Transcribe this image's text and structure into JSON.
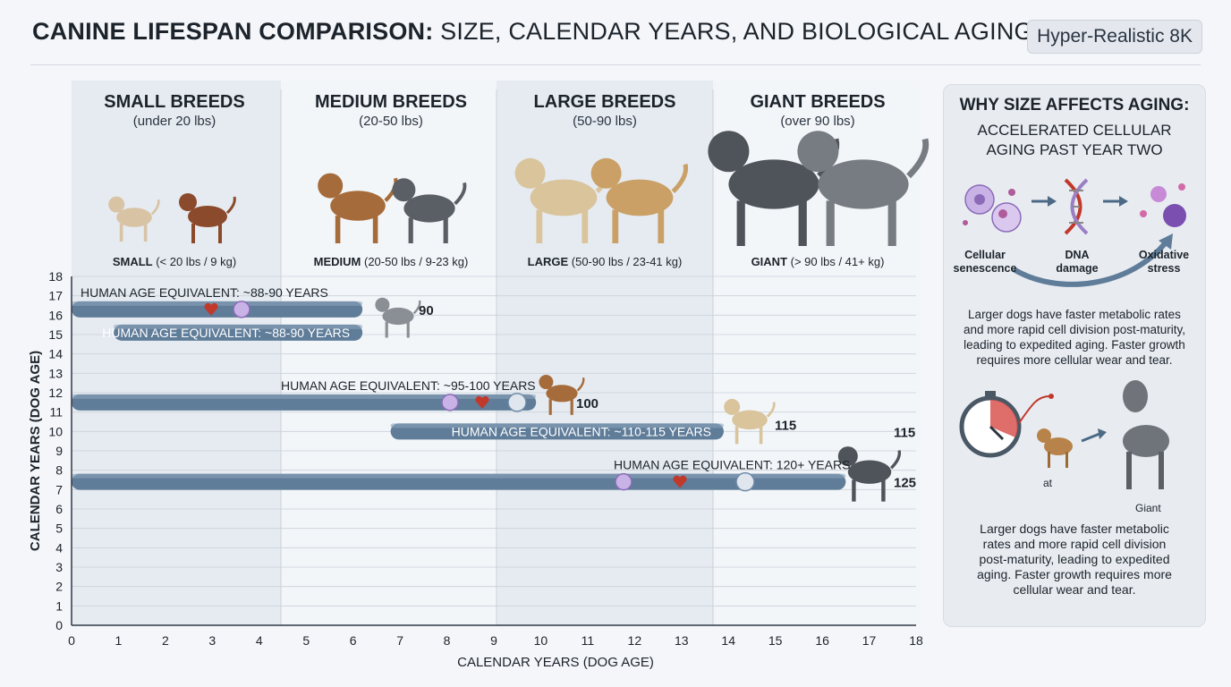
{
  "header": {
    "title_bold": "CANINE LIFESPAN COMPARISON:",
    "title_rest": " SIZE, CALENDAR YEARS, AND BIOLOGICAL AGING DIVERGENCE",
    "badge": "Hyper-Realistic 8K"
  },
  "breeds": [
    {
      "name": "SMALL BREEDS",
      "range": "(under 20 lbs)",
      "caption_bold": "SMALL",
      "caption_rest": " (< 20 lbs / 9 kg)"
    },
    {
      "name": "MEDIUM BREEDS",
      "range": "(20-50 lbs)",
      "caption_bold": "MEDIUM",
      "caption_rest": " (20-50 lbs / 9-23 kg)"
    },
    {
      "name": "LARGE BREEDS",
      "range": "(50-90 lbs)",
      "caption_bold": "LARGE",
      "caption_rest": " (50-90 lbs / 23-41 kg)"
    },
    {
      "name": "GIANT BREEDS",
      "range": "(over 90 lbs)",
      "caption_bold": "GIANT",
      "caption_rest": " (> 90 lbs / 41+ kg)"
    }
  ],
  "chart_data": {
    "type": "bar",
    "orientation": "horizontal",
    "xlabel": "CALENDAR YEARS (DOG AGE)",
    "ylabel": "CALENDAR YEARS (DOG AGE)",
    "xlim": [
      0,
      18
    ],
    "ylim": [
      0,
      18
    ],
    "xticks": [
      0,
      1,
      2,
      3,
      4,
      5,
      6,
      7,
      8,
      9,
      10,
      11,
      12,
      13,
      14,
      15,
      16,
      17,
      18
    ],
    "yticks": [
      0,
      1,
      2,
      3,
      4,
      5,
      6,
      7,
      8,
      9,
      10,
      11,
      12,
      13,
      14,
      15,
      16,
      17,
      18
    ],
    "grid": true,
    "bars": [
      {
        "label": "HUMAN AGE EQUIVALENT:  ~88-90 YEARS",
        "y": 16.3,
        "x_start": 0,
        "x_end": 6.2,
        "value_label": "90",
        "label_position": "above"
      },
      {
        "label": "HUMAN AGE EQUIVALENT: ~88-90 YEARS",
        "y": 15.1,
        "x_start": 0.9,
        "x_end": 6.2,
        "value_label": "",
        "label_position": "inside"
      },
      {
        "label": "HUMAN AGE EQUIVALENT: ~95-100 YEARS",
        "y": 11.5,
        "x_start": 0,
        "x_end": 9.9,
        "value_label": "100",
        "label_position": "above"
      },
      {
        "label": "HUMAN AGE EQUIVALENT: ~110-115 YEARS",
        "y": 10.0,
        "x_start": 6.8,
        "x_end": 13.9,
        "value_label": "115",
        "label_position": "inside"
      },
      {
        "label": "HUMAN AGE EQUIVALENT: 120+ YEARS",
        "y": 7.4,
        "x_start": 0,
        "x_end": 16.5,
        "value_label": "125",
        "label_position": "above"
      }
    ]
  },
  "side_panel": {
    "title": "WHY SIZE AFFECTS AGING:",
    "subtitle": "ACCELERATED CELLULAR AGING PAST YEAR TWO",
    "mechanisms": [
      "Cellular senescence",
      "DNA damage",
      "Oxidative stress"
    ],
    "paragraph1": "Larger dogs have faster metabolic rates and more rapid cell division post-maturity, leading to expedited aging. Faster growth requires more cellular wear and tear.",
    "caption_small": "at",
    "caption_giant": "Giant",
    "paragraph2": "Larger dogs have faster metabolic rates and more rapid cell division post-maturity, leading to expedited aging. Faster growth requires more cellular wear and tear."
  },
  "colors": {
    "bar_fill": "#5f7c99",
    "bar_dark": "#3e5872",
    "band_alt": "#e6ebf1",
    "panel_bg": "#e8ecf1",
    "accent_red": "#c0392b",
    "cell_purple": "#9b7fc4"
  }
}
